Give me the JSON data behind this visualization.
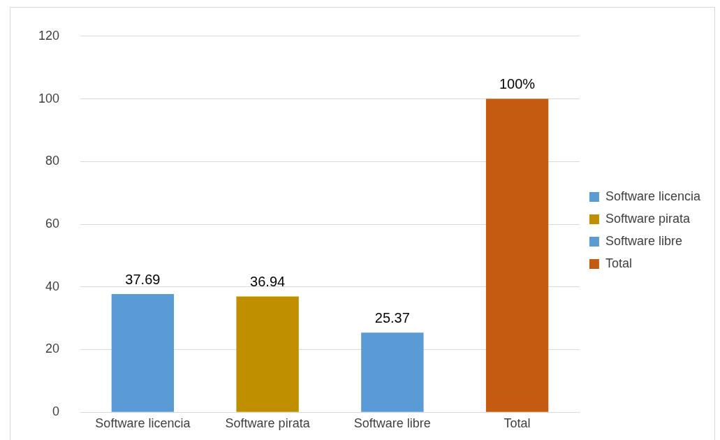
{
  "chart_data": {
    "type": "bar",
    "categories": [
      "Software licencia",
      "Software pirata",
      "Software libre",
      "Total"
    ],
    "series": [
      {
        "name": "Software licencia",
        "color": "#5b9bd5",
        "values": [
          37.69,
          null,
          null,
          null
        ],
        "value_labels": [
          "37.69",
          null,
          null,
          null
        ]
      },
      {
        "name": "Software pirata",
        "color": "#bf8f00",
        "values": [
          null,
          36.94,
          null,
          null
        ],
        "value_labels": [
          null,
          "36.94",
          null,
          null
        ]
      },
      {
        "name": "Software libre",
        "color": "#5b9bd5",
        "values": [
          null,
          null,
          25.37,
          null
        ],
        "value_labels": [
          null,
          null,
          "25.37",
          null
        ]
      },
      {
        "name": "Total",
        "color": "#c55a11",
        "values": [
          null,
          null,
          null,
          100
        ],
        "value_labels": [
          null,
          null,
          null,
          "100%"
        ]
      }
    ],
    "ylim": [
      0,
      120
    ],
    "yticks": [
      0,
      20,
      40,
      60,
      80,
      100,
      120
    ],
    "grid": "y",
    "legend": "right"
  }
}
